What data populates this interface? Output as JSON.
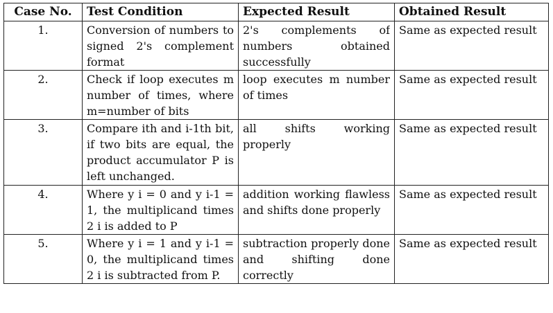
{
  "headers": [
    "Case No.",
    "Test Condition",
    "Expected Result",
    "Obtained Result"
  ],
  "rows": [
    {
      "case": "1.",
      "condition": "Conversion of numbers to signed 2's complement format",
      "expected": "2's complements of numbers obtained successfully",
      "obtained": "Same as expected result"
    },
    {
      "case": "2.",
      "condition": "Check if loop executes m number of times, where m=number of bits",
      "expected": "loop executes m number of times",
      "obtained": "Same as expected result"
    },
    {
      "case": "3.",
      "condition": "Compare ith and i-1th bit, if two bits are equal, the product accumulator P is left unchanged.",
      "expected": "all shifts working properly",
      "obtained": "Same as expected result"
    },
    {
      "case": "4.",
      "condition": "Where y i = 0 and y i-1 = 1, the multiplicand times 2 i is added to P",
      "expected": "addition working flawless and shifts done properly",
      "obtained": "Same as expected result"
    },
    {
      "case": "5.",
      "condition": "Where y i = 1 and y i-1 = 0, the multiplicand times 2 i is subtracted from P.",
      "expected": "subtraction properly done and shifting done correctly",
      "obtained": "Same as expected result"
    }
  ]
}
